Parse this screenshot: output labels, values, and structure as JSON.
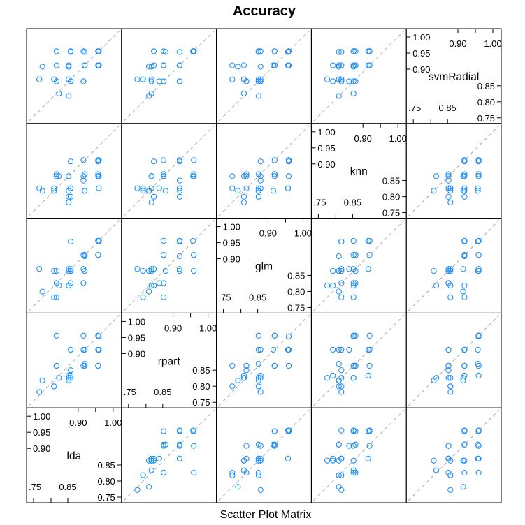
{
  "chart_data": {
    "type": "scatter",
    "title": "Accuracy",
    "xlabel": "Scatter Plot Matrix",
    "ylabel": "",
    "variables": [
      "lda",
      "rpart",
      "glm",
      "knn",
      "svmRadial"
    ],
    "axis_limits": [
      0.74,
      1.02
    ],
    "reference_line": "y = x",
    "grid": false,
    "tick_labels": {
      "upper_group": [
        "0.90",
        "0.95",
        "1.00",
        "1.00"
      ],
      "upper_group_horizontal": [
        "0.90",
        "1.00"
      ],
      "lower_group": [
        "0.75",
        "0.80",
        "0.85"
      ],
      "lower_group_horizontal": [
        ".75",
        "0.85"
      ]
    },
    "resamples": {
      "lda": [
        0.913,
        0.8261,
        0.8636,
        0.8696,
        0.9545,
        0.7727,
        0.913,
        0.9091,
        0.9565,
        0.8696,
        0.913,
        0.8182,
        0.8636,
        0.9545,
        0.9545,
        0.9091,
        0.8696,
        0.8636,
        0.7826,
        0.8182,
        0.8333,
        0.9565,
        0.9545,
        0.9091,
        0.9565,
        0.8696,
        0.8261,
        0.8696,
        0.8636,
        0.8261
      ],
      "rpart": [
        0.8696,
        0.8636,
        0.8182,
        0.8333,
        0.8636,
        0.7826,
        0.913,
        0.8636,
        0.913,
        0.913,
        0.8636,
        0.8,
        0.8261,
        0.9565,
        0.913,
        0.913,
        0.8261,
        0.8261,
        0.8182,
        0.8,
        0.8261,
        0.9545,
        0.8636,
        0.9565,
        0.913,
        0.85,
        0.8636,
        0.913,
        0.8333,
        0.9565
      ],
      "glm": [
        0.8636,
        0.7826,
        0.8636,
        0.8696,
        0.9565,
        0.8696,
        0.9091,
        0.8261,
        0.9545,
        0.8636,
        0.913,
        0.8636,
        0.8182,
        0.913,
        0.9565,
        0.8696,
        0.8636,
        0.8696,
        0.8,
        0.7826,
        0.8182,
        0.9565,
        0.913,
        0.913,
        0.9565,
        0.8261,
        0.8261,
        0.9545,
        0.8182,
        0.8636
      ],
      "knn": [
        0.8182,
        0.8636,
        0.8182,
        0.9091,
        0.913,
        0.8261,
        0.8182,
        0.8636,
        0.8261,
        0.8,
        0.8696,
        0.8182,
        0.7826,
        0.8636,
        0.9091,
        0.85,
        0.8261,
        0.8636,
        0.8182,
        0.8261,
        0.8636,
        0.8636,
        0.8696,
        0.913,
        0.913,
        0.8261,
        0.8696,
        0.8261,
        0.8,
        0.8696
      ],
      "svmRadial": [
        0.9545,
        0.913,
        0.8182,
        0.9565,
        0.9565,
        0.8696,
        0.913,
        0.8636,
        0.913,
        0.8636,
        0.913,
        0.8696,
        0.8696,
        0.9565,
        0.913,
        0.8636,
        0.8636,
        0.9091,
        0.9091,
        0.8696,
        0.8261,
        0.9565,
        0.913,
        0.9565,
        0.913,
        0.8636,
        0.8636,
        0.9545,
        0.913,
        0.9565
      ]
    },
    "point_color": "#1f8ff5",
    "reference_line_color": "#a8a8a8"
  }
}
